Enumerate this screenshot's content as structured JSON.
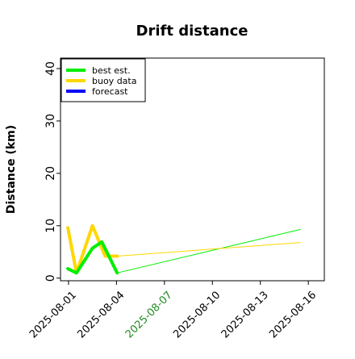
{
  "chart_data": {
    "type": "line",
    "title": "Drift distance",
    "xlabel": "",
    "ylabel": "Distance (km)",
    "ylim": [
      -0.5,
      42
    ],
    "xlim": [
      "2025-07-31T12:00",
      "2025-08-17T00:00"
    ],
    "yticks": [
      0,
      10,
      20,
      30,
      40
    ],
    "xticks": [
      {
        "date": "2025-08-01",
        "label": "2025-08-01",
        "color": "#000000"
      },
      {
        "date": "2025-08-04",
        "label": "2025-08-04",
        "color": "#000000"
      },
      {
        "date": "2025-08-07",
        "label": "2025-08-07",
        "color": "#228b22"
      },
      {
        "date": "2025-08-10",
        "label": "2025-08-10",
        "color": "#000000"
      },
      {
        "date": "2025-08-13",
        "label": "2025-08-13",
        "color": "#000000"
      },
      {
        "date": "2025-08-16",
        "label": "2025-08-16",
        "color": "#000000"
      }
    ],
    "legend_position": "top-left",
    "series": [
      {
        "name": "buoy data",
        "color": "#ffd700",
        "style": "thick",
        "points": [
          [
            "2025-07-31T23:00",
            9.6
          ],
          [
            "2025-08-01T12:00",
            1.0
          ],
          [
            "2025-08-02T12:00",
            10.0
          ],
          [
            "2025-08-03T07:00",
            4.2
          ],
          [
            "2025-08-04T01:00",
            4.2
          ]
        ]
      },
      {
        "name": "best est.",
        "color": "#00ee00",
        "style": "thick",
        "points": [
          [
            "2025-07-31T23:00",
            1.8
          ],
          [
            "2025-08-01T12:00",
            1.0
          ],
          [
            "2025-08-02T12:00",
            5.7
          ],
          [
            "2025-08-03T02:00",
            6.9
          ],
          [
            "2025-08-04T01:00",
            1.0
          ]
        ]
      },
      {
        "name": "",
        "color": "#00ee00",
        "style": "thin",
        "points": [
          [
            "2025-08-04T01:00",
            1.0
          ],
          [
            "2025-08-15T12:00",
            9.3
          ]
        ]
      },
      {
        "name": "",
        "color": "#ffd700",
        "style": "thin",
        "points": [
          [
            "2025-08-04T01:00",
            4.2
          ],
          [
            "2025-08-15T12:00",
            6.8
          ]
        ]
      }
    ],
    "legend": [
      {
        "label": "best est.",
        "color": "#00ee00"
      },
      {
        "label": "buoy data",
        "color": "#ffd700"
      },
      {
        "label": "forecast",
        "color": "#0000ff"
      }
    ]
  }
}
